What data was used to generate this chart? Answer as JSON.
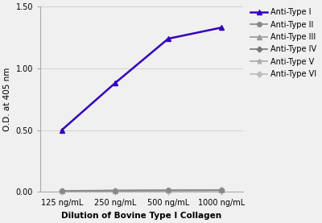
{
  "x_labels": [
    "125 ng/mL",
    "250 ng/mL",
    "500 ng/mL",
    "1000 ng/mL"
  ],
  "x_values": [
    0,
    1,
    2,
    3
  ],
  "series": [
    {
      "label": "Anti-Type I",
      "values": [
        0.5,
        0.88,
        1.24,
        1.33
      ],
      "color": "#3300bb",
      "marker": "^",
      "linewidth": 1.8,
      "markersize": 5,
      "zorder": 5
    },
    {
      "label": "Anti-Type II",
      "values": [
        0.008,
        0.01,
        0.012,
        0.014
      ],
      "color": "#888888",
      "marker": "o",
      "linewidth": 1.2,
      "markersize": 4,
      "zorder": 4
    },
    {
      "label": "Anti-Type III",
      "values": [
        0.009,
        0.011,
        0.013,
        0.013
      ],
      "color": "#999999",
      "marker": "^",
      "linewidth": 1.2,
      "markersize": 4,
      "zorder": 3
    },
    {
      "label": "Anti-Type IV",
      "values": [
        0.008,
        0.01,
        0.011,
        0.012
      ],
      "color": "#777777",
      "marker": "D",
      "linewidth": 1.2,
      "markersize": 3.5,
      "zorder": 3
    },
    {
      "label": "Anti-Type V",
      "values": [
        0.009,
        0.01,
        0.012,
        0.013
      ],
      "color": "#aaaaaa",
      "marker": "*",
      "linewidth": 1.2,
      "markersize": 5,
      "zorder": 3
    },
    {
      "label": "Anti-Type VI",
      "values": [
        0.008,
        0.009,
        0.011,
        0.012
      ],
      "color": "#bbbbbb",
      "marker": "D",
      "linewidth": 1.2,
      "markersize": 3.5,
      "zorder": 3
    }
  ],
  "xlabel": "Dilution of Bovine Type I Collagen",
  "ylabel": "O.D. at 405 nm",
  "ylim": [
    0.0,
    1.5
  ],
  "yticks": [
    0.0,
    0.5,
    1.0,
    1.5
  ],
  "background_color": "#f0f0f0",
  "plot_bg_color": "#f0f0f0",
  "grid_color": "#cccccc",
  "xlabel_fontsize": 7.5,
  "ylabel_fontsize": 7.5,
  "tick_fontsize": 7,
  "legend_fontsize": 7
}
